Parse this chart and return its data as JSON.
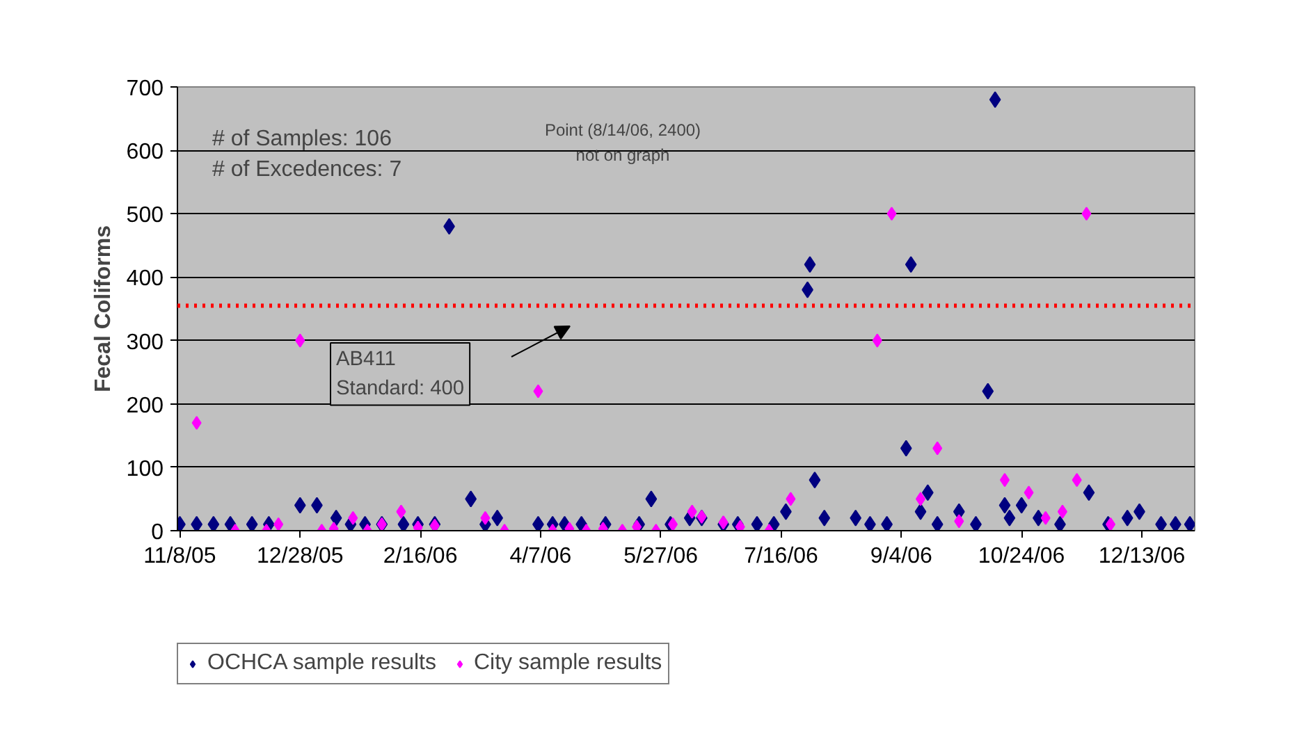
{
  "chart_data": {
    "type": "scatter",
    "ylabel": "Fecal Coliforms",
    "annotations": [
      "# of Samples: 106",
      "# of Excedences: 7",
      "Point (8/14/06, 2400)\nnot on graph",
      "AB411\nStandard: 400"
    ],
    "xlim": [
      "2005-11-07",
      "2007-01-04"
    ],
    "ylim": [
      0,
      700
    ],
    "xticks": [
      {
        "value": "2005-11-08",
        "label": "11/8/05"
      },
      {
        "value": "2005-12-28",
        "label": "12/28/05"
      },
      {
        "value": "2006-02-16",
        "label": "2/16/06"
      },
      {
        "value": "2006-04-07",
        "label": "4/7/06"
      },
      {
        "value": "2006-05-27",
        "label": "5/27/06"
      },
      {
        "value": "2006-07-16",
        "label": "7/16/06"
      },
      {
        "value": "2006-09-04",
        "label": "9/4/06"
      },
      {
        "value": "2006-10-24",
        "label": "10/24/06"
      },
      {
        "value": "2006-12-13",
        "label": "12/13/06"
      }
    ],
    "yticks": [
      0,
      100,
      200,
      300,
      400,
      500,
      600,
      700
    ],
    "grid": "y",
    "legend": "bottom left",
    "marker": "diamond",
    "ref_lines": [
      {
        "axis": "y",
        "value": 355,
        "color": "#ff0000",
        "line_style": "dotted"
      }
    ],
    "series": [
      {
        "name": "OCHCA sample results",
        "color": "#000080",
        "x": [
          "2005-11-08",
          "2005-11-15",
          "2005-11-22",
          "2005-11-29",
          "2005-12-08",
          "2005-12-15",
          "2005-12-28",
          "2006-01-04",
          "2006-01-12",
          "2006-01-18",
          "2006-01-24",
          "2006-01-31",
          "2006-02-09",
          "2006-02-15",
          "2006-02-22",
          "2006-02-28",
          "2006-03-09",
          "2006-03-15",
          "2006-03-20",
          "2006-04-06",
          "2006-04-12",
          "2006-04-17",
          "2006-04-24",
          "2006-05-04",
          "2006-05-18",
          "2006-05-23",
          "2006-05-31",
          "2006-06-08",
          "2006-06-13",
          "2006-06-22",
          "2006-06-28",
          "2006-07-06",
          "2006-07-13",
          "2006-07-18",
          "2006-07-27",
          "2006-07-28",
          "2006-07-30",
          "2006-08-03",
          "2006-08-16",
          "2006-08-22",
          "2006-08-29",
          "2006-09-06",
          "2006-09-08",
          "2006-09-12",
          "2006-09-15",
          "2006-09-19",
          "2006-09-28",
          "2006-10-05",
          "2006-10-10",
          "2006-10-13",
          "2006-10-17",
          "2006-10-19",
          "2006-10-24",
          "2006-10-31",
          "2006-11-09",
          "2006-11-21",
          "2006-11-29",
          "2006-12-07",
          "2006-12-12",
          "2006-12-21",
          "2006-12-27",
          "2007-01-02"
        ],
        "values": [
          10,
          10,
          10,
          10,
          10,
          10,
          40,
          40,
          20,
          10,
          10,
          10,
          10,
          10,
          10,
          480,
          50,
          10,
          20,
          10,
          10,
          10,
          10,
          10,
          10,
          50,
          10,
          20,
          20,
          10,
          10,
          10,
          10,
          30,
          380,
          420,
          80,
          20,
          20,
          10,
          10,
          130,
          420,
          30,
          60,
          10,
          30,
          10,
          220,
          680,
          40,
          20,
          40,
          20,
          10,
          60,
          10,
          20,
          30,
          10,
          10,
          10
        ]
      },
      {
        "name": "City sample results",
        "color": "#ff00ff",
        "x": [
          "2005-11-15",
          "2005-12-01",
          "2005-12-14",
          "2005-12-19",
          "2005-12-28",
          "2006-01-06",
          "2006-01-11",
          "2006-01-19",
          "2006-01-25",
          "2006-01-31",
          "2006-02-08",
          "2006-02-15",
          "2006-02-22",
          "2006-03-15",
          "2006-03-23",
          "2006-04-06",
          "2006-04-12",
          "2006-04-19",
          "2006-04-26",
          "2006-05-03",
          "2006-05-11",
          "2006-05-17",
          "2006-05-25",
          "2006-06-01",
          "2006-06-09",
          "2006-06-13",
          "2006-06-22",
          "2006-06-29",
          "2006-07-11",
          "2006-07-20",
          "2006-08-25",
          "2006-08-31",
          "2006-09-12",
          "2006-09-19",
          "2006-09-28",
          "2006-10-17",
          "2006-10-27",
          "2006-11-03",
          "2006-11-10",
          "2006-11-16",
          "2006-11-20",
          "2006-11-30"
        ],
        "values": [
          170,
          0,
          0,
          10,
          300,
          0,
          3,
          20,
          0,
          10,
          30,
          5,
          8,
          20,
          0,
          220,
          0,
          3,
          0,
          3,
          0,
          6,
          0,
          10,
          30,
          22,
          13,
          6,
          0,
          50,
          300,
          500,
          50,
          130,
          15,
          80,
          60,
          20,
          30,
          80,
          500,
          10
        ]
      }
    ]
  }
}
